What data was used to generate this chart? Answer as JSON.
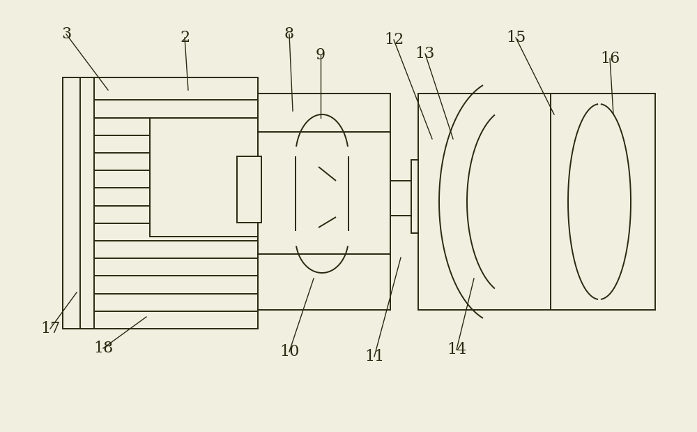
{
  "bg_color": "#f0efe0",
  "line_color": "#2a2810",
  "lw": 1.4,
  "fig_width": 10.0,
  "fig_height": 6.19,
  "dpi": 100
}
